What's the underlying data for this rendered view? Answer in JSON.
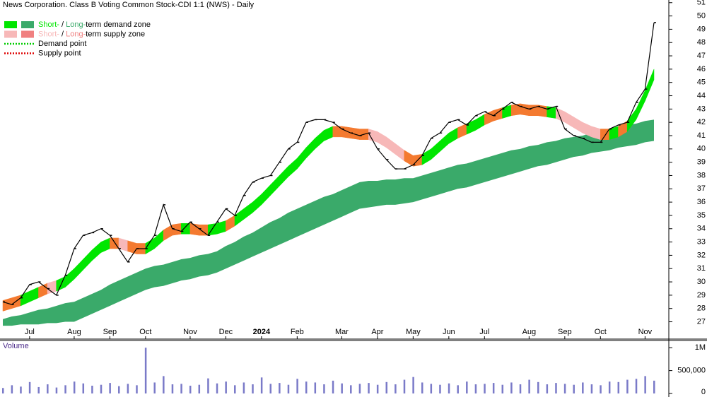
{
  "chart_data": {
    "type": "stock",
    "title": "News Corporation. Class B Voting Common Stock-CDI 1:1 (NWS) - Daily",
    "categories": [
      null,
      null,
      null,
      "Jul",
      null,
      null,
      null,
      null,
      "Aug",
      null,
      null,
      null,
      "Sep",
      null,
      null,
      null,
      "Oct",
      null,
      null,
      null,
      null,
      "Nov",
      null,
      null,
      null,
      "Dec",
      null,
      null,
      null,
      "2024",
      null,
      null,
      null,
      "Feb",
      null,
      null,
      null,
      null,
      "Mar",
      null,
      null,
      null,
      "Apr",
      null,
      null,
      null,
      "May",
      null,
      null,
      null,
      "Jun",
      null,
      null,
      null,
      "Jul",
      null,
      null,
      null,
      null,
      "Aug",
      null,
      null,
      null,
      "Sep",
      null,
      null,
      null,
      "Oct",
      null,
      null,
      null,
      null,
      "Nov",
      null
    ],
    "values": [
      28.5,
      28.3,
      28.8,
      29.8,
      30.0,
      29.5,
      29.0,
      30.5,
      32.5,
      33.5,
      33.7,
      34.0,
      33.5,
      32.5,
      31.5,
      32.5,
      32.5,
      33.5,
      35.8,
      34.0,
      33.8,
      34.5,
      34.0,
      33.5,
      34.5,
      35.5,
      35.0,
      36.5,
      37.5,
      37.8,
      38.0,
      39.0,
      40.0,
      40.5,
      42.0,
      42.2,
      42.2,
      42.0,
      41.5,
      41.2,
      41.0,
      41.2,
      40.0,
      39.2,
      38.5,
      38.5,
      38.8,
      39.5,
      40.8,
      41.2,
      42.0,
      42.2,
      41.8,
      42.5,
      42.8,
      42.5,
      43.0,
      43.5,
      43.2,
      43.0,
      43.2,
      43.0,
      43.2,
      41.5,
      41.0,
      40.8,
      40.5,
      40.5,
      41.5,
      41.8,
      42.0,
      43.5,
      44.5,
      49.5
    ],
    "price_color": "#000000",
    "short_term_band": {
      "upper": [
        28.6,
        28.8,
        29.0,
        29.3,
        29.6,
        29.9,
        30.1,
        30.4,
        31.0,
        31.7,
        32.4,
        33.0,
        33.3,
        33.3,
        33.1,
        32.9,
        32.9,
        33.3,
        33.9,
        34.3,
        34.4,
        34.4,
        34.3,
        34.3,
        34.4,
        34.6,
        35.0,
        35.5,
        36.0,
        36.6,
        37.3,
        38.0,
        38.7,
        39.3,
        40.1,
        40.8,
        41.4,
        41.7,
        41.7,
        41.6,
        41.5,
        41.5,
        41.3,
        40.9,
        40.4,
        39.9,
        39.5,
        39.6,
        40.0,
        40.6,
        41.2,
        41.6,
        41.9,
        42.2,
        42.6,
        42.9,
        43.1,
        43.3,
        43.4,
        43.3,
        43.3,
        43.2,
        43.1,
        42.8,
        42.4,
        42.0,
        41.7,
        41.5,
        41.5,
        41.7,
        42.1,
        43.0,
        44.4,
        46.0
      ],
      "lower": [
        27.8,
        28.0,
        28.2,
        28.5,
        28.8,
        29.1,
        29.3,
        29.6,
        30.2,
        30.9,
        31.6,
        32.2,
        32.5,
        32.5,
        32.3,
        32.1,
        32.1,
        32.5,
        33.1,
        33.5,
        33.6,
        33.6,
        33.5,
        33.5,
        33.6,
        33.8,
        34.2,
        34.7,
        35.2,
        35.8,
        36.5,
        37.2,
        37.9,
        38.5,
        39.3,
        40.0,
        40.6,
        40.9,
        40.9,
        40.8,
        40.7,
        40.7,
        40.5,
        40.1,
        39.6,
        39.1,
        38.7,
        38.8,
        39.2,
        39.8,
        40.4,
        40.8,
        41.1,
        41.4,
        41.8,
        42.1,
        42.3,
        42.5,
        42.6,
        42.5,
        42.5,
        42.4,
        42.3,
        42.0,
        41.6,
        41.2,
        40.9,
        40.7,
        40.7,
        40.9,
        41.3,
        42.2,
        43.6,
        45.2
      ]
    },
    "long_term_band": {
      "upper": [
        27.2,
        27.4,
        27.5,
        27.7,
        27.9,
        28.0,
        28.2,
        28.4,
        28.5,
        28.8,
        29.1,
        29.4,
        29.8,
        30.1,
        30.4,
        30.7,
        31.0,
        31.2,
        31.3,
        31.5,
        31.7,
        31.8,
        32.0,
        32.1,
        32.3,
        32.7,
        33.0,
        33.4,
        33.7,
        34.1,
        34.5,
        34.8,
        35.2,
        35.5,
        35.8,
        36.1,
        36.4,
        36.6,
        36.9,
        37.2,
        37.5,
        37.6,
        37.6,
        37.7,
        37.7,
        37.8,
        37.8,
        38.0,
        38.2,
        38.4,
        38.6,
        38.8,
        38.9,
        39.1,
        39.3,
        39.5,
        39.7,
        39.9,
        40.0,
        40.2,
        40.3,
        40.5,
        40.6,
        40.8,
        40.9,
        41.0,
        41.2,
        41.3,
        41.5,
        41.6,
        41.8,
        41.9,
        42.1,
        42.2
      ],
      "lower": [
        26.7,
        26.7,
        26.8,
        26.8,
        26.8,
        26.9,
        26.9,
        27.0,
        27.0,
        27.3,
        27.6,
        27.9,
        28.2,
        28.5,
        28.8,
        29.1,
        29.4,
        29.6,
        29.7,
        29.9,
        30.1,
        30.2,
        30.4,
        30.5,
        30.7,
        31.0,
        31.3,
        31.6,
        31.9,
        32.2,
        32.5,
        32.8,
        33.1,
        33.4,
        33.7,
        34.0,
        34.3,
        34.6,
        34.9,
        35.2,
        35.5,
        35.6,
        35.7,
        35.8,
        35.8,
        35.9,
        36.0,
        36.2,
        36.4,
        36.6,
        36.8,
        37.0,
        37.1,
        37.3,
        37.5,
        37.7,
        37.9,
        38.1,
        38.3,
        38.5,
        38.7,
        38.8,
        39.0,
        39.2,
        39.4,
        39.5,
        39.7,
        39.8,
        39.9,
        40.1,
        40.2,
        40.3,
        40.5,
        40.6
      ]
    },
    "demand_color": "#00e600",
    "supply_color": "#f7b8b8",
    "overlap_color": "#f47a30",
    "long_color": "#3aaa6a",
    "ylim": [
      25.7,
      51.2
    ],
    "yticks": [
      27,
      28,
      29,
      30,
      31,
      32,
      33,
      34,
      35,
      36,
      37,
      38,
      39,
      40,
      41,
      42,
      43,
      44,
      45,
      46,
      47,
      48,
      49,
      50,
      51
    ],
    "legend": [
      {
        "short": "Short-",
        "separator": "/",
        "long": "Long-",
        "text": "term demand zone",
        "short_color": "#00e600",
        "long_color": "#3aaa6a"
      },
      {
        "short": "Short-",
        "separator": "/",
        "long": "Long-",
        "text": "term supply zone",
        "short_color": "#f7b8b8",
        "long_color": "#f08080"
      },
      {
        "text": "Demand point",
        "color": "#00cc00"
      },
      {
        "text": "Supply point",
        "color": "#dd0000"
      }
    ],
    "volume": {
      "label": "Volume",
      "color": "#7a7ac8",
      "values": [
        120000,
        180000,
        150000,
        250000,
        140000,
        200000,
        130000,
        180000,
        260000,
        220000,
        170000,
        190000,
        230000,
        160000,
        210000,
        180000,
        1000000,
        240000,
        380000,
        200000,
        210000,
        170000,
        190000,
        330000,
        220000,
        260000,
        180000,
        240000,
        200000,
        350000,
        210000,
        230000,
        190000,
        320000,
        260000,
        240000,
        200000,
        280000,
        220000,
        180000,
        210000,
        230000,
        190000,
        250000,
        200000,
        300000,
        360000,
        240000,
        210000,
        190000,
        220000,
        180000,
        260000,
        200000,
        210000,
        230000,
        190000,
        240000,
        200000,
        300000,
        250000,
        200000,
        230000,
        210000,
        190000,
        240000,
        200000,
        180000,
        260000,
        250000,
        300000,
        320000,
        380000,
        280000
      ],
      "ylim": [
        0,
        1050000
      ],
      "yticks": [
        0,
        {
          "value": 500000,
          "label": "500,000"
        },
        {
          "value": 1000000,
          "label": "1M"
        }
      ]
    }
  }
}
